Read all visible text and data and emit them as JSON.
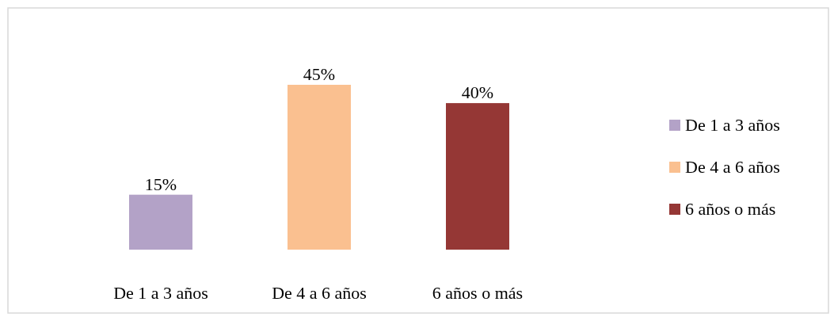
{
  "chart_data": {
    "type": "bar",
    "categories": [
      "De 1 a 3 años",
      "De 4 a 6 años",
      "6 años o más"
    ],
    "stacked": true,
    "series": [
      {
        "name": "De 1 a 3 años",
        "color": "#b3a2c7",
        "values": [
          15,
          null,
          null
        ],
        "value_labels": [
          "15%",
          null,
          null
        ]
      },
      {
        "name": "De 4 a 6 años",
        "color": "#fac090",
        "values": [
          null,
          45,
          null
        ],
        "value_labels": [
          null,
          "45%",
          null
        ]
      },
      {
        "name": "6 años o más",
        "color": "#953735",
        "values": [
          null,
          null,
          40
        ],
        "value_labels": [
          null,
          null,
          "40%"
        ]
      }
    ],
    "legend": "right"
  }
}
